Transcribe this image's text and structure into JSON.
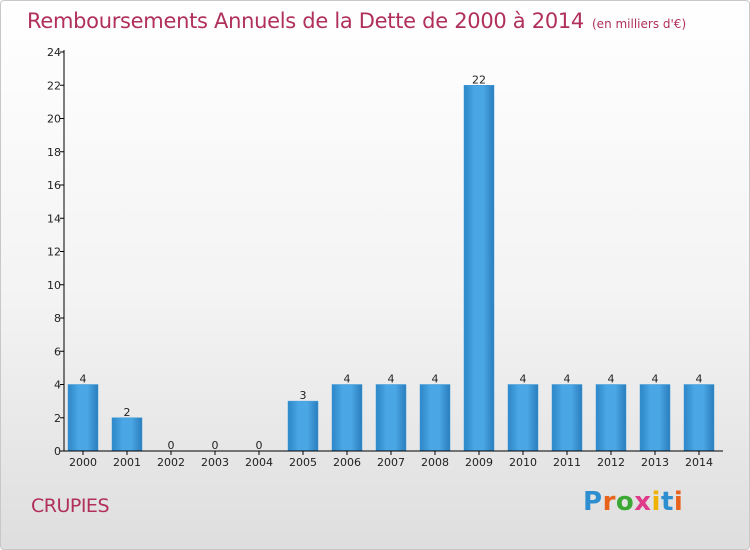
{
  "title": {
    "main": "Remboursements Annuels de la Dette de 2000 à 2014",
    "unit": "(en milliers d'€)"
  },
  "commune": "CRUPIES",
  "logo": {
    "text": "Proxiti",
    "letter_colors": [
      "#2e8fd0",
      "#e8641c",
      "#3aa832",
      "#e03a8a",
      "#f0b100",
      "#2e8fd0",
      "#e8641c"
    ]
  },
  "chart_data": {
    "type": "bar",
    "title": "Remboursements Annuels de la Dette de 2000 à 2014",
    "subtitle": "(en milliers d'€)",
    "xlabel": "",
    "ylabel": "",
    "categories": [
      "2000",
      "2001",
      "2002",
      "2003",
      "2004",
      "2005",
      "2006",
      "2007",
      "2008",
      "2009",
      "2010",
      "2011",
      "2012",
      "2013",
      "2014"
    ],
    "values": [
      4,
      2,
      0,
      0,
      0,
      3,
      4,
      4,
      4,
      22,
      4,
      4,
      4,
      4,
      4
    ],
    "ylim": [
      0,
      24
    ],
    "yticks": [
      0,
      2,
      4,
      6,
      8,
      10,
      12,
      14,
      16,
      18,
      20,
      22,
      24
    ],
    "grid": false,
    "bar_color": "#3d9ad8"
  }
}
